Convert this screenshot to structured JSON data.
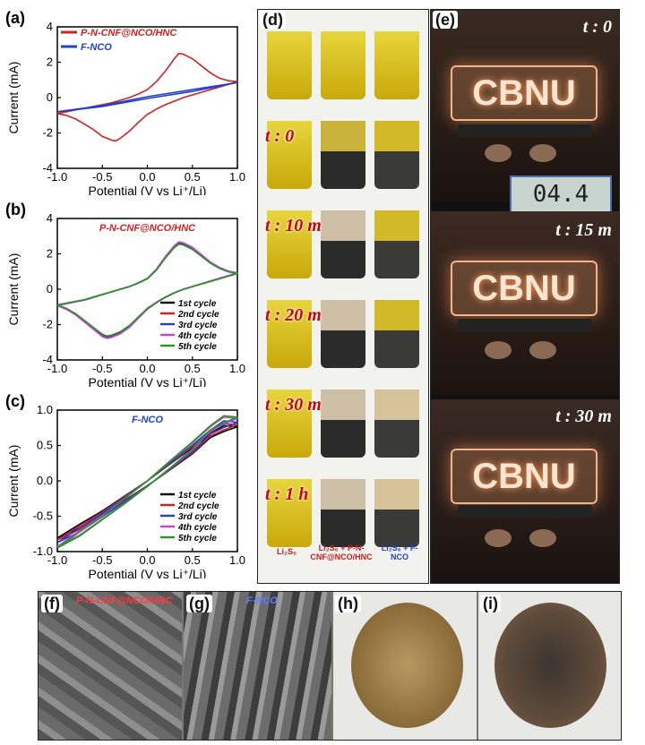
{
  "chart_data": [
    {
      "type": "line",
      "panel": "(a)",
      "xlabel": "Potential (V vs Li⁺/Li)",
      "ylabel": "Current (mA)",
      "xlim": [
        -1.0,
        1.0
      ],
      "ylim": [
        -4,
        4
      ],
      "x_ticks": [
        "-1.0",
        "-0.5",
        "0.0",
        "0.5",
        "1.0"
      ],
      "y_ticks": [
        "-4",
        "-2",
        "0",
        "2",
        "4"
      ],
      "legend": "top-left",
      "series": [
        {
          "name": "P-N-CNF@NCO/HNC",
          "color": "#d62020",
          "x": [
            -1.0,
            -0.9,
            -0.8,
            -0.7,
            -0.6,
            -0.5,
            -0.4,
            -0.3,
            -0.2,
            -0.1,
            0.0,
            0.1,
            0.2,
            0.3,
            0.35,
            0.4,
            0.5,
            0.6,
            0.7,
            0.8,
            0.9,
            1.0,
            0.9,
            0.8,
            0.7,
            0.6,
            0.5,
            0.4,
            0.3,
            0.2,
            0.1,
            0.0,
            -0.1,
            -0.2,
            -0.3,
            -0.35,
            -0.4,
            -0.5,
            -0.6,
            -0.7,
            -0.8,
            -0.9,
            -1.0
          ],
          "y": [
            -0.9,
            -0.8,
            -0.7,
            -0.6,
            -0.5,
            -0.4,
            -0.3,
            -0.15,
            0.0,
            0.2,
            0.45,
            0.9,
            1.5,
            2.2,
            2.5,
            2.45,
            2.2,
            1.8,
            1.4,
            1.1,
            0.95,
            0.9,
            0.75,
            0.6,
            0.45,
            0.3,
            0.15,
            0.0,
            -0.2,
            -0.4,
            -0.65,
            -0.95,
            -1.4,
            -1.9,
            -2.3,
            -2.45,
            -2.4,
            -2.2,
            -1.8,
            -1.5,
            -1.2,
            -1.0,
            -0.9
          ]
        },
        {
          "name": "F-NCO",
          "color": "#1f3fd6",
          "x": [
            -1.0,
            -0.5,
            0.0,
            0.5,
            1.0,
            0.5,
            0.0,
            -0.5,
            -1.0
          ],
          "y": [
            -0.8,
            -0.45,
            0.05,
            0.45,
            0.85,
            0.35,
            -0.05,
            -0.5,
            -0.8
          ]
        }
      ]
    },
    {
      "type": "line",
      "panel": "(b)",
      "title": "P-N-CNF@NCO/HNC",
      "xlabel": "Potential (V vs Li⁺/Li)",
      "ylabel": "Current (mA)",
      "xlim": [
        -1.0,
        1.0
      ],
      "ylim": [
        -4,
        4
      ],
      "x_ticks": [
        "-1.0",
        "-0.5",
        "0.0",
        "0.5",
        "1.0"
      ],
      "y_ticks": [
        "-4",
        "-2",
        "0",
        "2",
        "4"
      ],
      "legend": "bottom-right",
      "series": [
        {
          "name": "1st cycle",
          "color": "#000000",
          "scale": 1.0
        },
        {
          "name": "2nd cycle",
          "color": "#d62020",
          "scale": 1.0
        },
        {
          "name": "3rd cycle",
          "color": "#1f3fd6",
          "scale": 1.02
        },
        {
          "name": "4th cycle",
          "color": "#d23fd6",
          "scale": 1.03
        },
        {
          "name": "5th cycle",
          "color": "#1f9a1f",
          "scale": 0.98
        }
      ],
      "base_x": [
        -1.0,
        -0.9,
        -0.8,
        -0.7,
        -0.6,
        -0.5,
        -0.4,
        -0.3,
        -0.2,
        -0.1,
        0.0,
        0.1,
        0.2,
        0.3,
        0.35,
        0.4,
        0.5,
        0.6,
        0.7,
        0.8,
        0.9,
        1.0,
        0.9,
        0.8,
        0.7,
        0.6,
        0.5,
        0.4,
        0.3,
        0.2,
        0.1,
        0.0,
        -0.1,
        -0.2,
        -0.3,
        -0.4,
        -0.45,
        -0.5,
        -0.6,
        -0.7,
        -0.8,
        -0.9,
        -1.0
      ],
      "base_y": [
        -0.9,
        -0.8,
        -0.7,
        -0.6,
        -0.45,
        -0.3,
        -0.15,
        0.0,
        0.15,
        0.35,
        0.6,
        1.1,
        1.8,
        2.4,
        2.6,
        2.55,
        2.3,
        1.9,
        1.5,
        1.2,
        1.0,
        0.9,
        0.75,
        0.6,
        0.45,
        0.3,
        0.15,
        0.0,
        -0.2,
        -0.45,
        -0.75,
        -1.1,
        -1.6,
        -2.1,
        -2.45,
        -2.65,
        -2.7,
        -2.6,
        -2.2,
        -1.8,
        -1.4,
        -1.1,
        -0.9
      ]
    },
    {
      "type": "line",
      "panel": "(c)",
      "title": "F-NCO",
      "xlabel": "Potential (V vs Li⁺/Li)",
      "ylabel": "Current (mA)",
      "xlim": [
        -1.0,
        1.0
      ],
      "ylim": [
        -1.0,
        1.0
      ],
      "x_ticks": [
        "-1.0",
        "-0.5",
        "0.0",
        "0.5",
        "1.0"
      ],
      "y_ticks": [
        "-1.0",
        "-0.5",
        "0.0",
        "0.5",
        "1.0"
      ],
      "legend": "bottom-right",
      "series": [
        {
          "name": "1st cycle",
          "color": "#000000",
          "scale": 0.85
        },
        {
          "name": "2nd cycle",
          "color": "#d62020",
          "scale": 0.88
        },
        {
          "name": "3rd cycle",
          "color": "#1f3fd6",
          "scale": 0.92
        },
        {
          "name": "4th cycle",
          "color": "#d23fd6",
          "scale": 0.98
        },
        {
          "name": "5th cycle",
          "color": "#1f9a1f",
          "scale": 1.0
        }
      ],
      "base_x": [
        -1.0,
        -0.75,
        -0.5,
        -0.25,
        0.0,
        0.25,
        0.5,
        0.7,
        0.85,
        1.0,
        0.85,
        0.7,
        0.5,
        0.25,
        0.0,
        -0.25,
        -0.5,
        -0.75,
        -1.0
      ],
      "base_y": [
        -0.95,
        -0.72,
        -0.5,
        -0.25,
        0.0,
        0.28,
        0.55,
        0.78,
        0.92,
        0.9,
        0.82,
        0.72,
        0.45,
        0.18,
        -0.08,
        -0.32,
        -0.55,
        -0.78,
        -0.95
      ]
    }
  ],
  "panels": {
    "a_label": "(a)",
    "b_label": "(b)",
    "c_label": "(c)",
    "d_label": "(d)",
    "e_label": "(e)",
    "f_label": "(f)",
    "g_label": "(g)",
    "h_label": "(h)",
    "i_label": "(i)"
  },
  "panel_d": {
    "times": [
      "t : 0",
      "t : 10 m",
      "t : 20 m",
      "t : 30 m",
      "t : 1 h"
    ],
    "captions": [
      "Li₂S₆",
      "Li₂S₆ + P-N-CNF@NCO/HNC",
      "Li₂S₆ + F-NCO"
    ],
    "caption_colors": [
      "#c81e1e",
      "#c81e1e",
      "#1f3fd6"
    ]
  },
  "panel_e": {
    "times": [
      "t : 0",
      "t : 15 m",
      "t : 30 m"
    ],
    "sign_text": "CBNU",
    "meter_reading": "04.4"
  },
  "panel_sem": {
    "f_name": "P-N-CNF@NCO/HNC",
    "g_name": "F-NCO"
  }
}
